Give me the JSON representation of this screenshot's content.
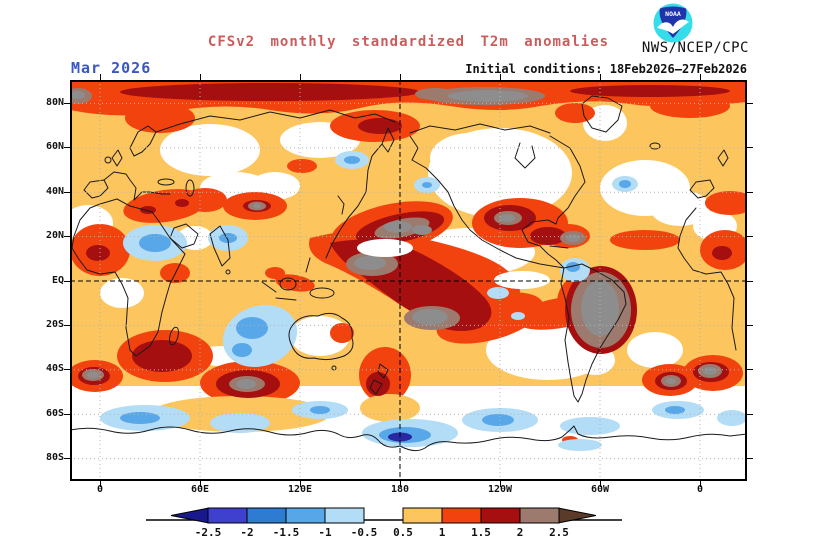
{
  "header": {
    "date_label": "Mar 2026",
    "title": "CFSv2 monthly standardized T2m anomalies",
    "agency": "NWS/NCEP/CPC",
    "initial_conditions": "Initial conditions: 18Feb2026–27Feb2026"
  },
  "logo": {
    "text": "NOAA"
  },
  "axes": {
    "lat_labels": [
      "80N",
      "60N",
      "40N",
      "20N",
      "EQ",
      "20S",
      "40S",
      "60S",
      "80S"
    ],
    "lon_labels": [
      "0",
      "60E",
      "120E",
      "180",
      "120W",
      "60W",
      "0"
    ]
  },
  "colorbar": {
    "tick_labels": [
      "-2.5",
      "-2",
      "-1.5",
      "-1",
      "-0.5",
      "0.5",
      "1",
      "1.5",
      "2",
      "2.5"
    ],
    "segment_colors": [
      "#4040cf",
      "#2e7bd2",
      "#57a6e8",
      "#b3dcf6",
      "none",
      "#fcc55e",
      "#f2430e",
      "#a50f0f",
      "#9c7a6e"
    ],
    "left_arrow_color": "#18188f",
    "right_arrow_color": "#5a3a28"
  },
  "palette": {
    "title_color": "#cc5c5c",
    "date_color": "#3a55c4",
    "gold": "#fcc55e",
    "red_orange": "#f2430e",
    "dark_red": "#a50f0f",
    "brown": "#9c7a6e",
    "gray": "#8d8d8d",
    "pale_blue": "#b3dcf6",
    "medium_blue": "#58a7e9",
    "navy": "#2828a4"
  }
}
